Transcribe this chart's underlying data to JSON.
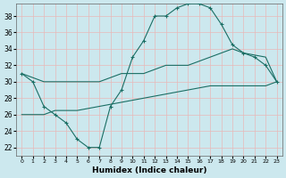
{
  "xlabel": "Humidex (Indice chaleur)",
  "bg_color": "#cce8ee",
  "grid_color": "#e8b8b8",
  "line_color": "#1a6e64",
  "xlim": [
    -0.5,
    23.5
  ],
  "ylim": [
    21,
    39.5
  ],
  "xticks": [
    0,
    1,
    2,
    3,
    4,
    5,
    6,
    7,
    8,
    9,
    10,
    11,
    12,
    13,
    14,
    15,
    16,
    17,
    18,
    19,
    20,
    21,
    22,
    23
  ],
  "yticks": [
    22,
    24,
    26,
    28,
    30,
    32,
    34,
    36,
    38
  ],
  "line1_x": [
    0,
    1,
    2,
    3,
    4,
    5,
    6,
    7,
    8,
    9,
    10,
    11,
    12,
    13,
    14,
    15,
    16,
    17,
    18,
    19,
    20,
    21,
    22,
    23
  ],
  "line1_y": [
    31,
    30,
    27,
    26,
    25,
    23,
    22,
    22,
    27,
    29,
    33,
    35,
    38,
    38,
    39,
    39.5,
    39.5,
    39,
    37,
    34.5,
    33.5,
    33,
    32,
    30
  ],
  "line2_x": [
    0,
    2,
    3,
    5,
    7,
    9,
    11,
    13,
    15,
    17,
    19,
    20,
    22,
    23
  ],
  "line2_y": [
    31,
    30,
    30,
    30,
    30,
    31,
    31,
    32,
    32,
    33,
    34,
    33.5,
    33,
    30
  ],
  "line3_x": [
    0,
    2,
    3,
    5,
    7,
    9,
    11,
    13,
    15,
    17,
    19,
    20,
    22,
    23
  ],
  "line3_y": [
    26,
    26,
    26.5,
    26.5,
    27,
    27.5,
    28,
    28.5,
    29,
    29.5,
    29.5,
    29.5,
    29.5,
    30
  ]
}
